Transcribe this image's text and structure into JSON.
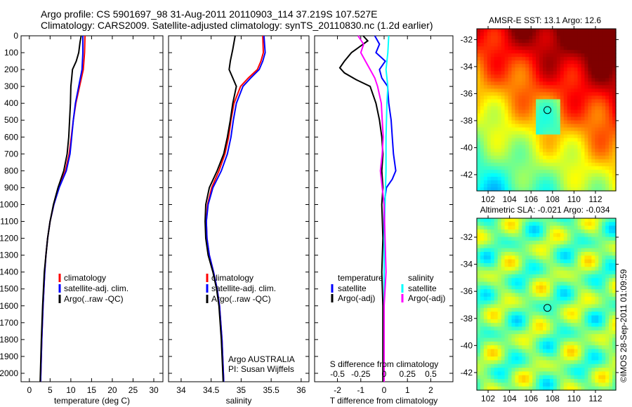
{
  "title_line1": "Argo profile: CS 5901697_98 31-Aug-2011 20110903_114 37.219S 107.527E",
  "title_line2": "Climatology: CARS2009. Satellite-adjusted climatology: synTS_20110830.nc (1.2d earlier)",
  "stamp": "©IMOS 28-Sep-2011 01:09:59",
  "colors": {
    "climatology": "#ff0000",
    "satellite": "#0000ff",
    "argo": "#000000",
    "sat_s": "#00ffff",
    "argo_s": "#ff00ff"
  },
  "chart_data": [
    {
      "type": "line",
      "name": "temperature",
      "xlabel": "temperature (deg C)",
      "xlim": [
        -2,
        32.2
      ],
      "ylim": [
        0,
        2050
      ],
      "xticks": [
        "0",
        "5",
        "10",
        "15",
        "20",
        "25",
        "30"
      ],
      "yticks": [
        "0",
        "100",
        "200",
        "300",
        "400",
        "500",
        "600",
        "700",
        "800",
        "900",
        "1000",
        "1100",
        "1200",
        "1300",
        "1400",
        "1500",
        "1600",
        "1700",
        "1800",
        "1900",
        "2000"
      ],
      "legend": [
        "climatology",
        "satellite-adj. clim.",
        "Argo(..raw -QC)"
      ],
      "series": [
        {
          "name": "climatology",
          "color": "#ff0000",
          "depth": [
            0,
            100,
            200,
            300,
            400,
            500,
            600,
            700,
            800,
            900,
            1000,
            1100,
            1200,
            1300,
            1400,
            1600,
            1800,
            2050
          ],
          "values": [
            13.4,
            13.3,
            13.0,
            12.1,
            11.2,
            10.6,
            10.1,
            9.6,
            8.7,
            7.1,
            5.9,
            5.0,
            4.4,
            4.0,
            3.7,
            3.3,
            3.0,
            2.7
          ]
        },
        {
          "name": "satellite-adj. clim.",
          "color": "#0000ff",
          "depth": [
            0,
            100,
            200,
            300,
            400,
            500,
            600,
            700,
            800,
            900,
            1000,
            1100,
            1200,
            1300,
            1400,
            1600,
            1800,
            2050
          ],
          "values": [
            12.9,
            12.9,
            12.7,
            11.9,
            11.1,
            10.6,
            10.2,
            9.8,
            8.9,
            7.2,
            5.9,
            5.0,
            4.4,
            4.0,
            3.7,
            3.3,
            3.0,
            2.7
          ]
        },
        {
          "name": "Argo(..raw -QC)",
          "color": "#000000",
          "depth": [
            0,
            40,
            100,
            150,
            200,
            250,
            300,
            400,
            500,
            600,
            700,
            800,
            900,
            1000,
            1100,
            1200,
            1300,
            1400,
            1600,
            1800,
            2050
          ],
          "values": [
            12.5,
            12.2,
            11.9,
            11.3,
            10.4,
            10.2,
            10.0,
            9.9,
            9.7,
            9.5,
            9.1,
            8.3,
            6.9,
            5.8,
            5.0,
            4.4,
            4.0,
            3.6,
            3.2,
            2.9,
            2.6
          ]
        }
      ]
    },
    {
      "type": "line",
      "name": "salinity",
      "xlabel": "salinity",
      "xlim": [
        33.79,
        36.13
      ],
      "ylim": [
        0,
        2050
      ],
      "xticks": [
        "34",
        "34.5",
        "35",
        "35.5",
        "36"
      ],
      "legend": [
        "climatology",
        "satellite-adj. clim.",
        "Argo(..raw -QC)"
      ],
      "annotation": [
        "Argo AUSTRALIA",
        "PI: Susan Wijffels"
      ],
      "series": [
        {
          "name": "climatology",
          "color": "#ff0000",
          "depth": [
            0,
            100,
            150,
            200,
            250,
            300,
            400,
            500,
            600,
            700,
            800,
            900,
            1000,
            1100,
            1200,
            1300,
            1400,
            1500,
            1600,
            1800,
            2050
          ],
          "values": [
            35.36,
            35.37,
            35.33,
            35.27,
            35.12,
            34.99,
            34.88,
            34.83,
            34.79,
            34.73,
            34.63,
            34.51,
            34.44,
            34.42,
            34.43,
            34.47,
            34.54,
            34.6,
            34.64,
            34.68,
            34.71
          ]
        },
        {
          "name": "satellite-adj. clim.",
          "color": "#0000ff",
          "depth": [
            0,
            100,
            150,
            200,
            250,
            300,
            400,
            500,
            600,
            700,
            800,
            900,
            1000,
            1100,
            1200,
            1300,
            1400,
            1500,
            1600,
            1800,
            2050
          ],
          "values": [
            35.38,
            35.4,
            35.36,
            35.3,
            35.16,
            35.03,
            34.92,
            34.87,
            34.83,
            34.77,
            34.67,
            34.53,
            34.45,
            34.42,
            34.43,
            34.47,
            34.54,
            34.6,
            34.64,
            34.68,
            34.71
          ]
        },
        {
          "name": "Argo(..raw -QC)",
          "color": "#000000",
          "depth": [
            0,
            80,
            150,
            200,
            250,
            300,
            400,
            500,
            600,
            700,
            800,
            900,
            1000,
            1100,
            1200,
            1300,
            1400,
            1500,
            1600,
            1800,
            2050
          ],
          "values": [
            34.9,
            34.86,
            34.82,
            34.8,
            34.86,
            34.92,
            34.86,
            34.82,
            34.77,
            34.71,
            34.6,
            34.47,
            34.41,
            34.4,
            34.41,
            34.45,
            34.53,
            34.59,
            34.63,
            34.67,
            34.7
          ]
        }
      ]
    },
    {
      "type": "line",
      "name": "differences",
      "xlabel": "T difference from climatology",
      "x2label": "S difference from climatology",
      "xlim": [
        -2.98,
        2.95
      ],
      "s_scale": 4,
      "ylim": [
        0,
        2050
      ],
      "xticks": [
        "-2",
        "-1",
        "0",
        "1",
        "2"
      ],
      "x2ticks": [
        "-0.5",
        "-0.25",
        "0",
        "0.25",
        "0.5"
      ],
      "legend_t": {
        "title": "temperature",
        "items": [
          "satellite",
          "Argo(-adj)"
        ]
      },
      "legend_s": {
        "title": "salinity",
        "items": [
          "satellite",
          "Argo(-adj)"
        ]
      },
      "series": [
        {
          "name": "T satellite",
          "color": "#0000ff",
          "units": "T",
          "depth": [
            0,
            50,
            100,
            150,
            200,
            250,
            300,
            400,
            500,
            600,
            700,
            800,
            850,
            900,
            1000,
            1200,
            1600,
            2050
          ],
          "values": [
            -0.4,
            -0.2,
            -0.35,
            0.05,
            -0.2,
            -0.1,
            0.15,
            0.2,
            0.3,
            0.35,
            0.4,
            0.5,
            0.35,
            0.1,
            0,
            0,
            0,
            0
          ]
        },
        {
          "name": "T Argo(-adj)",
          "color": "#000000",
          "units": "T",
          "depth": [
            0,
            30,
            100,
            150,
            190,
            220,
            260,
            300,
            400,
            500,
            600,
            700,
            800,
            900,
            1000,
            1200,
            1400,
            1600,
            1800,
            2050
          ],
          "values": [
            -0.9,
            -0.7,
            -1.4,
            -1.7,
            -1.9,
            -1.7,
            -1.2,
            -0.6,
            -0.35,
            -0.2,
            -0.1,
            -0.05,
            -0.1,
            -0.05,
            -0.1,
            -0.05,
            -0.1,
            -0.05,
            -0.05,
            -0.05
          ]
        },
        {
          "name": "S satellite",
          "color": "#00ffff",
          "units": "S",
          "depth": [
            0,
            100,
            200,
            300,
            400,
            600,
            800,
            1000,
            1200,
            1400,
            1600,
            1800,
            2050
          ],
          "values": [
            0.05,
            0.04,
            0.02,
            0.04,
            0.03,
            0.02,
            0.02,
            0.01,
            0.0,
            0.0,
            0.0,
            0.0,
            0.0
          ]
        },
        {
          "name": "S Argo(-adj)",
          "color": "#ff00ff",
          "units": "S",
          "depth": [
            0,
            50,
            100,
            150,
            200,
            250,
            300,
            400,
            500,
            600,
            700,
            800,
            900,
            1000,
            1200,
            1400,
            1600,
            2050
          ],
          "values": [
            -0.28,
            -0.22,
            -0.25,
            -0.2,
            -0.15,
            -0.1,
            -0.07,
            -0.03,
            -0.02,
            -0.01,
            -0.02,
            -0.04,
            -0.02,
            0.0,
            0.01,
            0.02,
            0.0,
            0.0
          ]
        }
      ]
    },
    {
      "type": "heatmap",
      "title": "AMSR-E SST: 13.1 Argo: 12.6",
      "xlim": [
        100.95,
        113.9
      ],
      "ylim": [
        -43.2,
        -31.2
      ],
      "xticks": [
        "102",
        "104",
        "106",
        "108",
        "110",
        "112"
      ],
      "yticks": [
        "-32",
        "-34",
        "-36",
        "-38",
        "-40",
        "-42"
      ],
      "marker": [
        107.527,
        -37.219
      ]
    },
    {
      "type": "heatmap",
      "title": "Altimetric SLA: -0.021 Argo: -0.034",
      "xlim": [
        100.95,
        113.9
      ],
      "ylim": [
        -43.3,
        -30.6
      ],
      "xticks": [
        "102",
        "104",
        "106",
        "108",
        "110",
        "112"
      ],
      "yticks": [
        "-32",
        "-34",
        "-36",
        "-38",
        "-40",
        "-42"
      ],
      "marker": [
        107.527,
        -37.219
      ]
    }
  ]
}
